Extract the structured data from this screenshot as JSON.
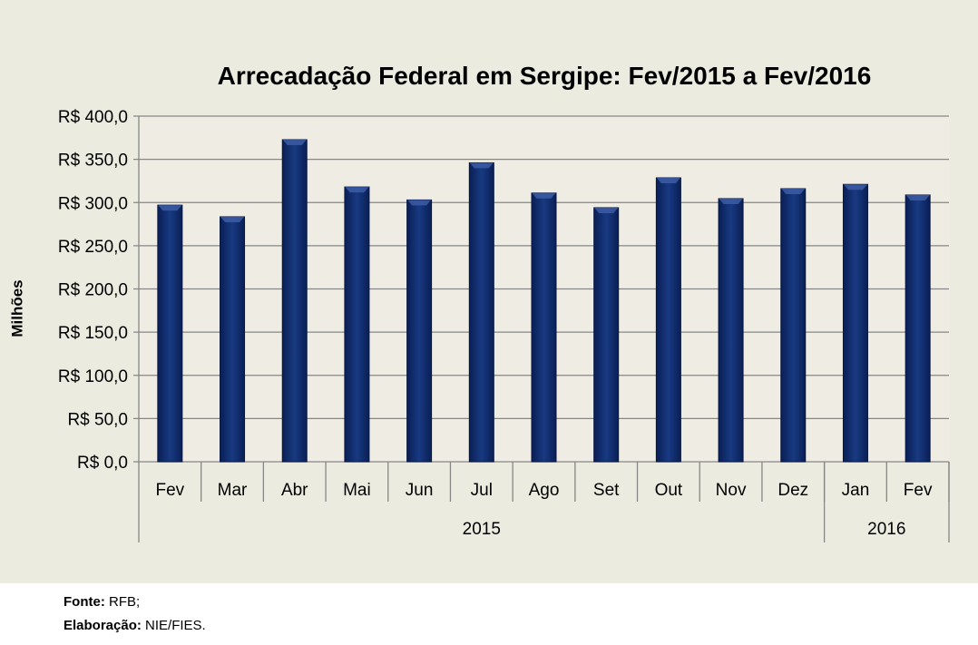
{
  "chart_data": {
    "type": "bar",
    "title": "Arrecadação Federal em Sergipe: Fev/2015 a Fev/2016",
    "ylabel": "Milhões",
    "xlabel": "",
    "ylim": [
      0,
      400
    ],
    "yticks": [
      "R$ 0,0",
      "R$ 50,0",
      "R$ 100,0",
      "R$ 150,0",
      "R$ 200,0",
      "R$ 250,0",
      "R$ 300,0",
      "R$ 350,0",
      "R$ 400,0"
    ],
    "categories": [
      "Fev",
      "Mar",
      "Abr",
      "Mai",
      "Jun",
      "Jul",
      "Ago",
      "Set",
      "Out",
      "Nov",
      "Dez",
      "Jan",
      "Fev"
    ],
    "groups": [
      {
        "label": "2015",
        "count": 11
      },
      {
        "label": "2016",
        "count": 2
      }
    ],
    "values": [
      297,
      283.5,
      372.7,
      318,
      303,
      346,
      311,
      294,
      328.6,
      304.5,
      316,
      321,
      308.7
    ],
    "grid": true,
    "bar_color": "#0f2a6b"
  },
  "footer": {
    "fonte_label": "Fonte:",
    "fonte": "RFB;",
    "elab_label": "Elaboração:",
    "elab": "NIE/FIES."
  }
}
